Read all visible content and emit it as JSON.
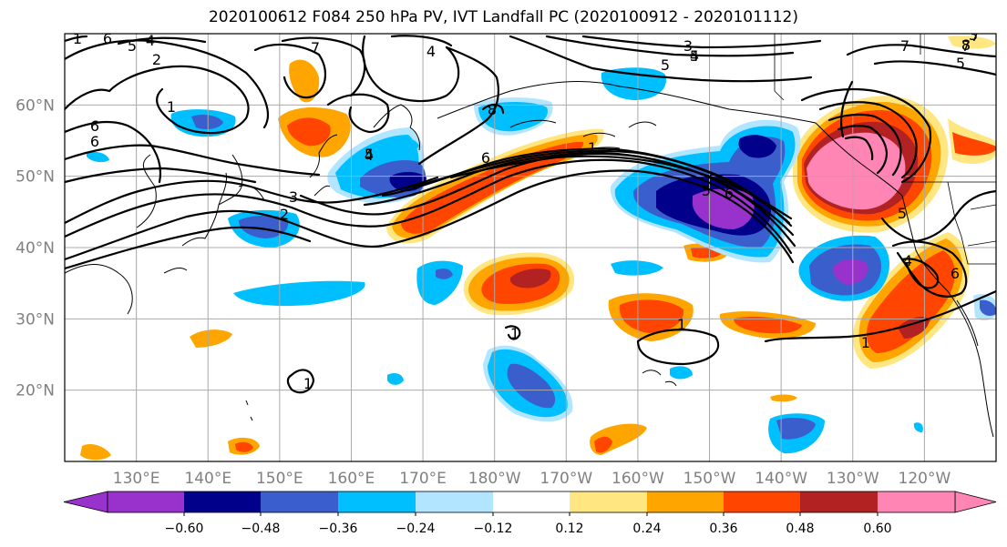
{
  "title": "2020100612 F084 250 hPa PV, IVT Landfall PC (2020100912 - 2020101112)",
  "map": {
    "lat_labels": [
      "60°N",
      "50°N",
      "40°N",
      "30°N",
      "20°N"
    ],
    "lon_labels": [
      "130°E",
      "140°E",
      "150°E",
      "160°E",
      "170°E",
      "180°W",
      "170°W",
      "160°W",
      "150°W",
      "140°W",
      "130°W",
      "120°W"
    ],
    "extent": {
      "lon_min": 120,
      "lon_max": 250,
      "lat_min": 10,
      "lat_max": 70
    },
    "grid": true
  },
  "colorbar": {
    "colors": [
      "#9932cc",
      "#00008b",
      "#3a5fcd",
      "#00bfff",
      "#b2e5ff",
      "#ffffff",
      "#ffe680",
      "#ffa500",
      "#ff4500",
      "#b22222",
      "#ff85b5"
    ],
    "tick_labels": [
      "−0.60",
      "−0.48",
      "−0.36",
      "−0.24",
      "−0.12",
      "0.12",
      "0.24",
      "0.36",
      "0.48",
      "0.60"
    ],
    "extend": "both"
  },
  "contour_labels": [
    "1",
    "6",
    "5",
    "4",
    "2",
    "7",
    "1",
    "5",
    "6",
    "4",
    "8",
    "5",
    "4",
    "3",
    "2",
    "3",
    "4",
    "5",
    "6",
    "7",
    "8",
    "3",
    "1",
    "5",
    "4",
    "6",
    "7",
    "5",
    "6",
    "1",
    "1",
    "1",
    "1",
    "5",
    "6",
    "7"
  ],
  "styles": {
    "positive_shading": "#ff4500",
    "negative_shading": "#00bfff",
    "grid_color": "#a9a9a9"
  }
}
